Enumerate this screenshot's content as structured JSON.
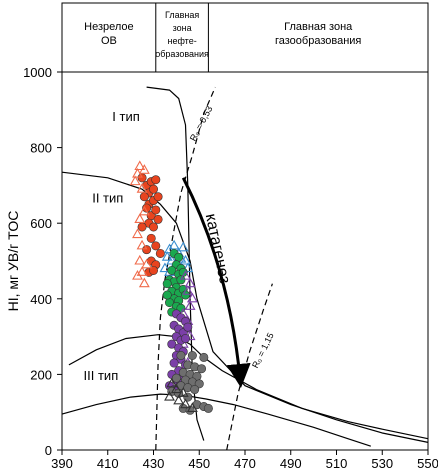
{
  "chart_data": {
    "type": "scatter",
    "xlabel": "",
    "ylabel": "HI, мг УВ/г TOC",
    "xlim": [
      390,
      550
    ],
    "ylim": [
      0,
      1000
    ],
    "x_ticks": [
      "390",
      "410",
      "430",
      "450",
      "470",
      "490",
      "510",
      "530",
      "550"
    ],
    "y_ticks": [
      "0",
      "200",
      "400",
      "600",
      "800",
      "1000"
    ],
    "zones": [
      {
        "label_lines": [
          "Незрелое",
          "ОВ"
        ],
        "x_range": [
          390,
          431
        ]
      },
      {
        "label_lines": [
          "Главная",
          "зона",
          "нефте-",
          "образования"
        ],
        "x_range": [
          431,
          454
        ]
      },
      {
        "label_lines": [
          "Главная зона",
          "газообразования"
        ],
        "x_range": [
          454,
          550
        ]
      }
    ],
    "annotations": {
      "type1": "I тип",
      "type2": "II тип",
      "type3": "III тип",
      "catagenesis": "катагенез",
      "ro_053": "R₀ = 0,53",
      "ro_115": "R₀ = 1,15"
    },
    "curves": [
      {
        "name": "I тип",
        "points": [
          [
            427,
            960
          ],
          [
            437,
            952
          ],
          [
            441,
            930
          ],
          [
            444,
            860
          ],
          [
            445,
            700
          ],
          [
            446,
            400
          ],
          [
            447,
            200
          ],
          [
            449,
            80
          ],
          [
            452,
            25
          ]
        ]
      },
      {
        "name": "II тип",
        "points": [
          [
            390,
            735
          ],
          [
            410,
            720
          ],
          [
            425,
            690
          ],
          [
            433,
            650
          ],
          [
            440,
            600
          ],
          [
            446,
            500
          ],
          [
            449,
            400
          ],
          [
            456,
            260
          ],
          [
            470,
            170
          ],
          [
            490,
            120
          ],
          [
            510,
            80
          ],
          [
            530,
            45
          ],
          [
            550,
            20
          ]
        ]
      },
      {
        "name": "III тип",
        "points": [
          [
            393,
            225
          ],
          [
            405,
            265
          ],
          [
            418,
            295
          ],
          [
            432,
            305
          ],
          [
            440,
            300
          ],
          [
            446,
            280
          ],
          [
            452,
            245
          ],
          [
            460,
            210
          ],
          [
            475,
            160
          ],
          [
            495,
            110
          ],
          [
            515,
            75
          ],
          [
            530,
            55
          ],
          [
            550,
            30
          ]
        ]
      },
      {
        "name": "lower",
        "points": [
          [
            390,
            95
          ],
          [
            405,
            120
          ],
          [
            420,
            140
          ],
          [
            433,
            148
          ],
          [
            443,
            145
          ],
          [
            453,
            135
          ],
          [
            465,
            120
          ],
          [
            480,
            95
          ],
          [
            500,
            60
          ],
          [
            515,
            30
          ],
          [
            525,
            10
          ]
        ]
      }
    ],
    "ro_lines": [
      {
        "name": "R₀ = 0,53",
        "points": [
          [
            431,
            0
          ],
          [
            432,
            230
          ],
          [
            433,
            350
          ],
          [
            435,
            450
          ],
          [
            438,
            550
          ],
          [
            442,
            680
          ],
          [
            447,
            780
          ],
          [
            452,
            890
          ],
          [
            457,
            960
          ]
        ]
      },
      {
        "name": "R₀ = 1,15",
        "points": [
          [
            462,
            0
          ],
          [
            467,
            150
          ],
          [
            472,
            260
          ],
          [
            478,
            370
          ],
          [
            482,
            440
          ]
        ]
      }
    ],
    "arrow": {
      "from": [
        443,
        720
      ],
      "to": [
        468,
        180
      ]
    },
    "series": [
      {
        "marker": "circle-filled",
        "color": "#e8441f",
        "points": [
          [
            425,
            720
          ],
          [
            427,
            700
          ],
          [
            428,
            680
          ],
          [
            429,
            710
          ],
          [
            430,
            690
          ],
          [
            431,
            715
          ],
          [
            426,
            670
          ],
          [
            428,
            650
          ],
          [
            430,
            660
          ],
          [
            432,
            670
          ],
          [
            427,
            640
          ],
          [
            429,
            620
          ],
          [
            431,
            635
          ],
          [
            428,
            600
          ],
          [
            430,
            590
          ],
          [
            432,
            610
          ],
          [
            425,
            590
          ],
          [
            429,
            560
          ],
          [
            431,
            540
          ],
          [
            427,
            530
          ],
          [
            429,
            500
          ],
          [
            431,
            490
          ],
          [
            428,
            470
          ],
          [
            430,
            475
          ],
          [
            433,
            520
          ]
        ]
      },
      {
        "marker": "triangle-open",
        "color": "#f06a4a",
        "points": [
          [
            424,
            750
          ],
          [
            423,
            730
          ],
          [
            426,
            740
          ],
          [
            422,
            710
          ],
          [
            425,
            690
          ],
          [
            426,
            630
          ],
          [
            424,
            610
          ],
          [
            423,
            570
          ],
          [
            425,
            540
          ],
          [
            424,
            500
          ],
          [
            427,
            490
          ],
          [
            425,
            470
          ],
          [
            423,
            460
          ],
          [
            426,
            440
          ]
        ]
      },
      {
        "marker": "triangle-open",
        "color": "#3a8fd1",
        "points": [
          [
            437,
            530
          ],
          [
            439,
            540
          ],
          [
            441,
            520
          ],
          [
            443,
            535
          ],
          [
            436,
            510
          ],
          [
            438,
            500
          ],
          [
            440,
            495
          ],
          [
            442,
            505
          ],
          [
            444,
            500
          ],
          [
            435,
            480
          ],
          [
            437,
            470
          ],
          [
            445,
            480
          ],
          [
            439,
            460
          ]
        ]
      },
      {
        "marker": "circle-filled",
        "color": "#1aa84e",
        "points": [
          [
            439,
            520
          ],
          [
            441,
            510
          ],
          [
            440,
            490
          ],
          [
            442,
            480
          ],
          [
            438,
            475
          ],
          [
            441,
            465
          ],
          [
            443,
            470
          ],
          [
            437,
            450
          ],
          [
            439,
            445
          ],
          [
            442,
            450
          ],
          [
            440,
            430
          ],
          [
            438,
            420
          ],
          [
            441,
            415
          ],
          [
            443,
            425
          ],
          [
            436,
            440
          ],
          [
            439,
            400
          ],
          [
            441,
            395
          ],
          [
            437,
            390
          ],
          [
            440,
            380
          ],
          [
            442,
            375
          ],
          [
            438,
            365
          ],
          [
            444,
            410
          ],
          [
            436,
            410
          ]
        ]
      },
      {
        "marker": "triangle-open",
        "color": "#7b3fa8",
        "points": [
          [
            444,
            460
          ],
          [
            446,
            440
          ],
          [
            445,
            420
          ],
          [
            447,
            400
          ],
          [
            446,
            380
          ],
          [
            443,
            360
          ],
          [
            445,
            340
          ],
          [
            444,
            320
          ],
          [
            446,
            300
          ],
          [
            443,
            280
          ],
          [
            441,
            250
          ],
          [
            445,
            230
          ]
        ]
      },
      {
        "marker": "circle-filled",
        "color": "#7b3fa8",
        "points": [
          [
            440,
            360
          ],
          [
            442,
            350
          ],
          [
            444,
            340
          ],
          [
            439,
            330
          ],
          [
            441,
            320
          ],
          [
            443,
            310
          ],
          [
            445,
            325
          ],
          [
            440,
            300
          ],
          [
            442,
            290
          ],
          [
            444,
            295
          ],
          [
            438,
            280
          ],
          [
            441,
            270
          ],
          [
            443,
            260
          ],
          [
            440,
            250
          ],
          [
            442,
            240
          ],
          [
            439,
            230
          ],
          [
            444,
            225
          ],
          [
            441,
            210
          ],
          [
            438,
            200
          ],
          [
            443,
            195
          ],
          [
            440,
            185
          ],
          [
            442,
            175
          ],
          [
            437,
            170
          ],
          [
            439,
            160
          ],
          [
            441,
            150
          ]
        ]
      },
      {
        "marker": "circle-filled",
        "color": "#6e6e6e",
        "points": [
          [
            442,
            250
          ],
          [
            447,
            250
          ],
          [
            452,
            245
          ],
          [
            445,
            225
          ],
          [
            448,
            220
          ],
          [
            451,
            215
          ],
          [
            443,
            205
          ],
          [
            446,
            200
          ],
          [
            449,
            195
          ],
          [
            440,
            190
          ],
          [
            444,
            185
          ],
          [
            447,
            180
          ],
          [
            450,
            175
          ],
          [
            442,
            170
          ],
          [
            445,
            165
          ],
          [
            448,
            160
          ],
          [
            438,
            155
          ],
          [
            441,
            150
          ],
          [
            445,
            140
          ],
          [
            449,
            120
          ],
          [
            452,
            115
          ],
          [
            454,
            110
          ],
          [
            443,
            110
          ],
          [
            446,
            105
          ]
        ]
      },
      {
        "marker": "triangle-open",
        "color": "#333333",
        "points": [
          [
            438,
            175
          ],
          [
            440,
            160
          ],
          [
            443,
            150
          ],
          [
            437,
            140
          ],
          [
            441,
            130
          ],
          [
            444,
            120
          ],
          [
            447,
            110
          ]
        ]
      }
    ]
  }
}
